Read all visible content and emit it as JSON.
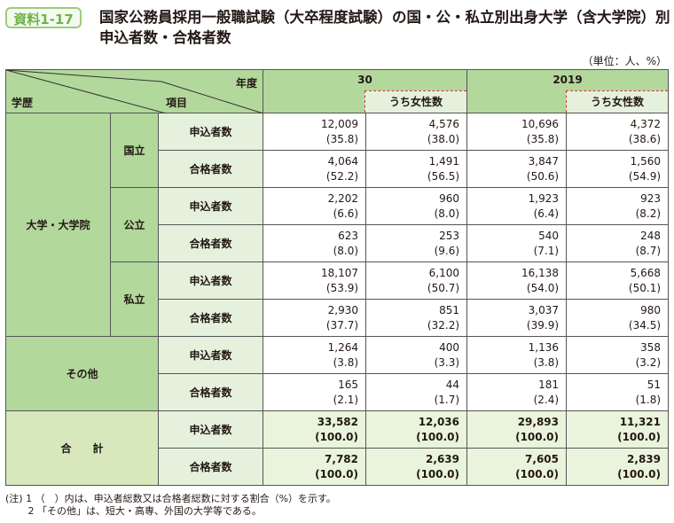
{
  "badge": "資料1-17",
  "title": "国家公務員採用一般職試験（大卒程度試験）の国・公・私立別出身大学（含大学院）別申込者数・合格者数",
  "unit": "（単位：人、%）",
  "header": {
    "year_label": "年度",
    "item_label": "項目",
    "edu_label": "学歴",
    "years": [
      "30",
      "2019"
    ],
    "female_label": "うち女性数"
  },
  "groups": [
    {
      "label": "大学・大学院",
      "subs": [
        {
          "label": "国立",
          "rows": [
            {
              "item": "申込者数",
              "v": [
                "12,009",
                "4,576",
                "10,696",
                "4,372"
              ],
              "p": [
                "(35.8)",
                "(38.0)",
                "(35.8)",
                "(38.6)"
              ]
            },
            {
              "item": "合格者数",
              "v": [
                "4,064",
                "1,491",
                "3,847",
                "1,560"
              ],
              "p": [
                "(52.2)",
                "(56.5)",
                "(50.6)",
                "(54.9)"
              ]
            }
          ]
        },
        {
          "label": "公立",
          "rows": [
            {
              "item": "申込者数",
              "v": [
                "2,202",
                "960",
                "1,923",
                "923"
              ],
              "p": [
                "(6.6)",
                "(8.0)",
                "(6.4)",
                "(8.2)"
              ]
            },
            {
              "item": "合格者数",
              "v": [
                "623",
                "253",
                "540",
                "248"
              ],
              "p": [
                "(8.0)",
                "(9.6)",
                "(7.1)",
                "(8.7)"
              ]
            }
          ]
        },
        {
          "label": "私立",
          "rows": [
            {
              "item": "申込者数",
              "v": [
                "18,107",
                "6,100",
                "16,138",
                "5,668"
              ],
              "p": [
                "(53.9)",
                "(50.7)",
                "(54.0)",
                "(50.1)"
              ]
            },
            {
              "item": "合格者数",
              "v": [
                "2,930",
                "851",
                "3,037",
                "980"
              ],
              "p": [
                "(37.7)",
                "(32.2)",
                "(39.9)",
                "(34.5)"
              ]
            }
          ]
        }
      ]
    },
    {
      "label": "その他",
      "rows": [
        {
          "item": "申込者数",
          "v": [
            "1,264",
            "400",
            "1,136",
            "358"
          ],
          "p": [
            "(3.8)",
            "(3.3)",
            "(3.8)",
            "(3.2)"
          ]
        },
        {
          "item": "合格者数",
          "v": [
            "165",
            "44",
            "181",
            "51"
          ],
          "p": [
            "(2.1)",
            "(1.7)",
            "(2.4)",
            "(1.8)"
          ]
        }
      ]
    },
    {
      "label": "合　　計",
      "rows": [
        {
          "item": "申込者数",
          "v": [
            "33,582",
            "12,036",
            "29,893",
            "11,321"
          ],
          "p": [
            "(100.0)",
            "(100.0)",
            "(100.0)",
            "(100.0)"
          ]
        },
        {
          "item": "合格者数",
          "v": [
            "7,782",
            "2,639",
            "7,605",
            "2,839"
          ],
          "p": [
            "(100.0)",
            "(100.0)",
            "(100.0)",
            "(100.0)"
          ]
        }
      ]
    }
  ],
  "notes": [
    "(注) 1 （　）内は、申込者総数又は合格者総数に対する割合（%）を示す。",
    "　　 2 「その他」は、短大・高専、外国の大学等である。"
  ],
  "colors": {
    "header": "#b3d89c",
    "label": "#e5f1dc",
    "total": "#eaf4dc"
  }
}
